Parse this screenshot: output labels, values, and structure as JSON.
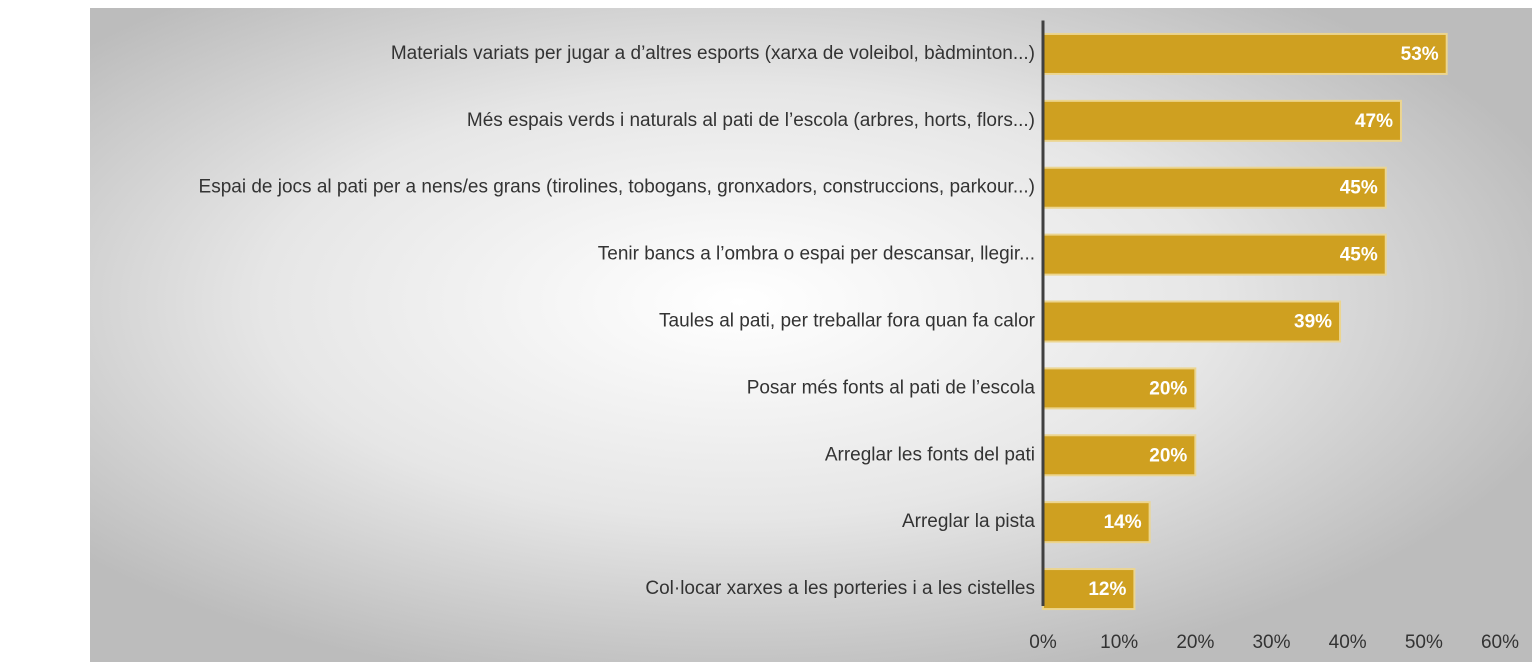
{
  "chart_data": {
    "type": "bar",
    "categories": [
      "Materials variats per jugar a d’altres esports (xarxa de voleibol, bàdminton...)",
      "Més espais verds i naturals al pati de l’escola (arbres, horts, flors...)",
      "Espai de jocs al pati per a nens/es grans (tirolines, tobogans, gronxadors, construccions, parkour...)",
      "Tenir bancs a l’ombra o espai per descansar, llegir...",
      "Taules al pati, per treballar fora quan fa calor",
      "Posar més fonts al pati de l’escola",
      "Arreglar les fonts del pati",
      "Arreglar la pista",
      "Col·locar xarxes a les porteries i a les cistelles"
    ],
    "values": [
      53,
      47,
      45,
      45,
      39,
      20,
      20,
      14,
      12
    ],
    "value_labels": [
      "53%",
      "47%",
      "45%",
      "45%",
      "39%",
      "20%",
      "20%",
      "14%",
      "12%"
    ],
    "color": "#cfa020",
    "xlim": [
      0,
      60
    ],
    "xticks": [
      {
        "value": 0,
        "label": "0%"
      },
      {
        "value": 10,
        "label": "10%"
      },
      {
        "value": 20,
        "label": "20%"
      },
      {
        "value": 30,
        "label": "30%"
      },
      {
        "value": 40,
        "label": "40%"
      },
      {
        "value": 50,
        "label": "50%"
      },
      {
        "value": 60,
        "label": "60%"
      }
    ]
  }
}
